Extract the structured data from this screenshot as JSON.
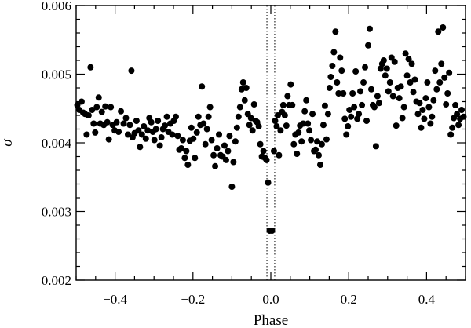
{
  "chart_data": {
    "type": "scatter",
    "xlabel": "Phase",
    "ylabel": "σ",
    "xlim": [
      -0.5,
      0.5
    ],
    "ylim": [
      0.002,
      0.006
    ],
    "x_major_ticks": [
      -0.4,
      -0.2,
      0.0,
      0.2,
      0.4
    ],
    "x_tick_labels": [
      "−0.4",
      "−0.2",
      "0.0",
      "0.2",
      "0.4"
    ],
    "x_minor_ticks": [
      -0.5,
      -0.45,
      -0.35,
      -0.3,
      -0.25,
      -0.15,
      -0.1,
      -0.05,
      0.05,
      0.1,
      0.15,
      0.25,
      0.3,
      0.35,
      0.45,
      0.5
    ],
    "y_major_ticks": [
      0.002,
      0.003,
      0.004,
      0.005,
      0.006
    ],
    "y_tick_labels": [
      "0.002",
      "0.003",
      "0.004",
      "0.005",
      "0.006"
    ],
    "y_minor_ticks": [
      0.0022,
      0.0024,
      0.0026,
      0.0028,
      0.0032,
      0.0034,
      0.0036,
      0.0038,
      0.0042,
      0.0044,
      0.0046,
      0.0048,
      0.0052,
      0.0054,
      0.0056,
      0.0058
    ],
    "reference_lines": [
      {
        "orientation": "vertical",
        "x": -0.01,
        "style": "dotted"
      },
      {
        "orientation": "vertical",
        "x": 0.01,
        "style": "dotted"
      }
    ],
    "grid": false,
    "legend": "none",
    "marker": {
      "shape": "filled-circle",
      "color": "#000000"
    },
    "points": [
      [
        -0.497,
        0.00455
      ],
      [
        -0.492,
        0.00448
      ],
      [
        -0.486,
        0.0046
      ],
      [
        -0.482,
        0.00444
      ],
      [
        -0.477,
        0.00442
      ],
      [
        -0.473,
        0.00412
      ],
      [
        -0.468,
        0.0044
      ],
      [
        -0.463,
        0.0051
      ],
      [
        -0.459,
        0.00448
      ],
      [
        -0.455,
        0.00428
      ],
      [
        -0.451,
        0.00415
      ],
      [
        -0.447,
        0.00452
      ],
      [
        -0.442,
        0.00466
      ],
      [
        -0.438,
        0.00428
      ],
      [
        -0.434,
        0.00445
      ],
      [
        -0.429,
        0.00426
      ],
      [
        -0.425,
        0.00453
      ],
      [
        -0.42,
        0.0043
      ],
      [
        -0.416,
        0.00405
      ],
      [
        -0.411,
        0.00452
      ],
      [
        -0.406,
        0.00426
      ],
      [
        -0.401,
        0.00418
      ],
      [
        -0.396,
        0.0043
      ],
      [
        -0.391,
        0.00416
      ],
      [
        -0.385,
        0.00446
      ],
      [
        -0.378,
        0.00428
      ],
      [
        -0.372,
        0.00436
      ],
      [
        -0.367,
        0.00412
      ],
      [
        -0.362,
        0.00426
      ],
      [
        -0.358,
        0.00505
      ],
      [
        -0.355,
        0.00408
      ],
      [
        -0.35,
        0.00414
      ],
      [
        -0.345,
        0.00432
      ],
      [
        -0.34,
        0.00418
      ],
      [
        -0.336,
        0.00394
      ],
      [
        -0.331,
        0.00412
      ],
      [
        -0.326,
        0.00424
      ],
      [
        -0.321,
        0.00406
      ],
      [
        -0.316,
        0.00418
      ],
      [
        -0.312,
        0.00436
      ],
      [
        -0.307,
        0.0043
      ],
      [
        -0.303,
        0.00416
      ],
      [
        -0.299,
        0.00404
      ],
      [
        -0.295,
        0.0042
      ],
      [
        -0.29,
        0.00432
      ],
      [
        -0.285,
        0.00396
      ],
      [
        -0.281,
        0.00408
      ],
      [
        -0.277,
        0.0042
      ],
      [
        -0.272,
        0.00425
      ],
      [
        -0.267,
        0.00438
      ],
      [
        -0.263,
        0.00416
      ],
      [
        -0.258,
        0.00428
      ],
      [
        -0.253,
        0.00412
      ],
      [
        -0.249,
        0.00432
      ],
      [
        -0.244,
        0.00438
      ],
      [
        -0.239,
        0.0041
      ],
      [
        -0.235,
        0.0039
      ],
      [
        -0.23,
        0.00392
      ],
      [
        -0.226,
        0.00404
      ],
      [
        -0.221,
        0.00378
      ],
      [
        -0.217,
        0.00388
      ],
      [
        -0.213,
        0.00368
      ],
      [
        -0.208,
        0.00403
      ],
      [
        -0.204,
        0.00422
      ],
      [
        -0.199,
        0.00406
      ],
      [
        -0.195,
        0.00378
      ],
      [
        -0.19,
        0.00415
      ],
      [
        -0.186,
        0.00438
      ],
      [
        -0.181,
        0.00426
      ],
      [
        -0.177,
        0.00482
      ],
      [
        -0.173,
        0.00428
      ],
      [
        -0.168,
        0.00398
      ],
      [
        -0.164,
        0.0042
      ],
      [
        -0.16,
        0.00438
      ],
      [
        -0.156,
        0.00452
      ],
      [
        -0.152,
        0.00404
      ],
      [
        -0.147,
        0.00382
      ],
      [
        -0.143,
        0.00366
      ],
      [
        -0.138,
        0.00392
      ],
      [
        -0.133,
        0.00412
      ],
      [
        -0.129,
        0.00382
      ],
      [
        -0.124,
        0.0038
      ],
      [
        -0.119,
        0.00396
      ],
      [
        -0.115,
        0.00375
      ],
      [
        -0.11,
        0.00388
      ],
      [
        -0.106,
        0.0041
      ],
      [
        -0.1,
        0.00336
      ],
      [
        -0.096,
        0.00372
      ],
      [
        -0.091,
        0.00402
      ],
      [
        -0.087,
        0.00422
      ],
      [
        -0.083,
        0.00438
      ],
      [
        -0.079,
        0.00452
      ],
      [
        -0.075,
        0.00478
      ],
      [
        -0.071,
        0.00488
      ],
      [
        -0.067,
        0.00462
      ],
      [
        -0.063,
        0.0048
      ],
      [
        -0.059,
        0.00442
      ],
      [
        -0.055,
        0.00426
      ],
      [
        -0.051,
        0.00436
      ],
      [
        -0.047,
        0.00418
      ],
      [
        -0.043,
        0.00456
      ],
      [
        -0.039,
        0.00432
      ],
      [
        -0.035,
        0.0043
      ],
      [
        -0.031,
        0.00424
      ],
      [
        -0.027,
        0.00398
      ],
      [
        -0.023,
        0.0038
      ],
      [
        -0.019,
        0.00388
      ],
      [
        -0.015,
        0.00378
      ],
      [
        -0.011,
        0.00375
      ],
      [
        -0.007,
        0.00342
      ],
      [
        -0.003,
        0.00272
      ],
      [
        0.003,
        0.00272
      ],
      [
        0.008,
        0.00388
      ],
      [
        0.011,
        0.00432
      ],
      [
        0.015,
        0.00424
      ],
      [
        0.018,
        0.0044
      ],
      [
        0.021,
        0.00382
      ],
      [
        0.025,
        0.00418
      ],
      [
        0.029,
        0.00445
      ],
      [
        0.032,
        0.00455
      ],
      [
        0.036,
        0.0044
      ],
      [
        0.04,
        0.00425
      ],
      [
        0.043,
        0.00468
      ],
      [
        0.047,
        0.00455
      ],
      [
        0.051,
        0.00485
      ],
      [
        0.055,
        0.00455
      ],
      [
        0.059,
        0.00398
      ],
      [
        0.063,
        0.00412
      ],
      [
        0.067,
        0.00384
      ],
      [
        0.071,
        0.00415
      ],
      [
        0.075,
        0.00425
      ],
      [
        0.079,
        0.00402
      ],
      [
        0.083,
        0.00428
      ],
      [
        0.087,
        0.00446
      ],
      [
        0.091,
        0.00462
      ],
      [
        0.095,
        0.00428
      ],
      [
        0.099,
        0.00418
      ],
      [
        0.103,
        0.00404
      ],
      [
        0.107,
        0.00442
      ],
      [
        0.111,
        0.00388
      ],
      [
        0.115,
        0.0039
      ],
      [
        0.119,
        0.00402
      ],
      [
        0.123,
        0.00382
      ],
      [
        0.127,
        0.00368
      ],
      [
        0.131,
        0.00398
      ],
      [
        0.135,
        0.00426
      ],
      [
        0.139,
        0.00454
      ],
      [
        0.143,
        0.00405
      ],
      [
        0.147,
        0.00442
      ],
      [
        0.151,
        0.0048
      ],
      [
        0.154,
        0.00496
      ],
      [
        0.158,
        0.00512
      ],
      [
        0.162,
        0.00532
      ],
      [
        0.166,
        0.00562
      ],
      [
        0.17,
        0.00488
      ],
      [
        0.174,
        0.00472
      ],
      [
        0.178,
        0.00524
      ],
      [
        0.182,
        0.00505
      ],
      [
        0.186,
        0.00472
      ],
      [
        0.19,
        0.00435
      ],
      [
        0.194,
        0.00412
      ],
      [
        0.198,
        0.00424
      ],
      [
        0.202,
        0.00448
      ],
      [
        0.206,
        0.00438
      ],
      [
        0.21,
        0.00472
      ],
      [
        0.214,
        0.00452
      ],
      [
        0.218,
        0.00504
      ],
      [
        0.222,
        0.00435
      ],
      [
        0.226,
        0.00442
      ],
      [
        0.23,
        0.00475
      ],
      [
        0.234,
        0.00455
      ],
      [
        0.238,
        0.00488
      ],
      [
        0.242,
        0.0051
      ],
      [
        0.246,
        0.00432
      ],
      [
        0.25,
        0.00542
      ],
      [
        0.254,
        0.00566
      ],
      [
        0.258,
        0.00478
      ],
      [
        0.262,
        0.00455
      ],
      [
        0.266,
        0.00452
      ],
      [
        0.27,
        0.00395
      ],
      [
        0.274,
        0.00468
      ],
      [
        0.278,
        0.00458
      ],
      [
        0.282,
        0.00508
      ],
      [
        0.286,
        0.00515
      ],
      [
        0.29,
        0.0052
      ],
      [
        0.294,
        0.00498
      ],
      [
        0.298,
        0.00508
      ],
      [
        0.302,
        0.00475
      ],
      [
        0.306,
        0.00488
      ],
      [
        0.31,
        0.00524
      ],
      [
        0.314,
        0.00468
      ],
      [
        0.318,
        0.00518
      ],
      [
        0.322,
        0.00425
      ],
      [
        0.326,
        0.0048
      ],
      [
        0.33,
        0.00465
      ],
      [
        0.334,
        0.00482
      ],
      [
        0.338,
        0.00436
      ],
      [
        0.342,
        0.00452
      ],
      [
        0.346,
        0.0053
      ],
      [
        0.35,
        0.00498
      ],
      [
        0.354,
        0.00522
      ],
      [
        0.358,
        0.00488
      ],
      [
        0.362,
        0.00515
      ],
      [
        0.366,
        0.00474
      ],
      [
        0.37,
        0.00492
      ],
      [
        0.374,
        0.0046
      ],
      [
        0.378,
        0.00442
      ],
      [
        0.382,
        0.00458
      ],
      [
        0.386,
        0.00422
      ],
      [
        0.39,
        0.00448
      ],
      [
        0.394,
        0.00435
      ],
      [
        0.398,
        0.00465
      ],
      [
        0.402,
        0.00488
      ],
      [
        0.406,
        0.00452
      ],
      [
        0.41,
        0.00428
      ],
      [
        0.414,
        0.00438
      ],
      [
        0.418,
        0.00462
      ],
      [
        0.422,
        0.00505
      ],
      [
        0.426,
        0.00478
      ],
      [
        0.43,
        0.00562
      ],
      [
        0.434,
        0.00488
      ],
      [
        0.438,
        0.00515
      ],
      [
        0.442,
        0.00568
      ],
      [
        0.446,
        0.00495
      ],
      [
        0.45,
        0.00456
      ],
      [
        0.454,
        0.00472
      ],
      [
        0.458,
        0.00502
      ],
      [
        0.462,
        0.00412
      ],
      [
        0.466,
        0.00422
      ],
      [
        0.47,
        0.00436
      ],
      [
        0.474,
        0.00455
      ],
      [
        0.478,
        0.00442
      ],
      [
        0.482,
        0.00426
      ],
      [
        0.486,
        0.00435
      ],
      [
        0.49,
        0.00448
      ],
      [
        0.495,
        0.00438
      ]
    ]
  }
}
